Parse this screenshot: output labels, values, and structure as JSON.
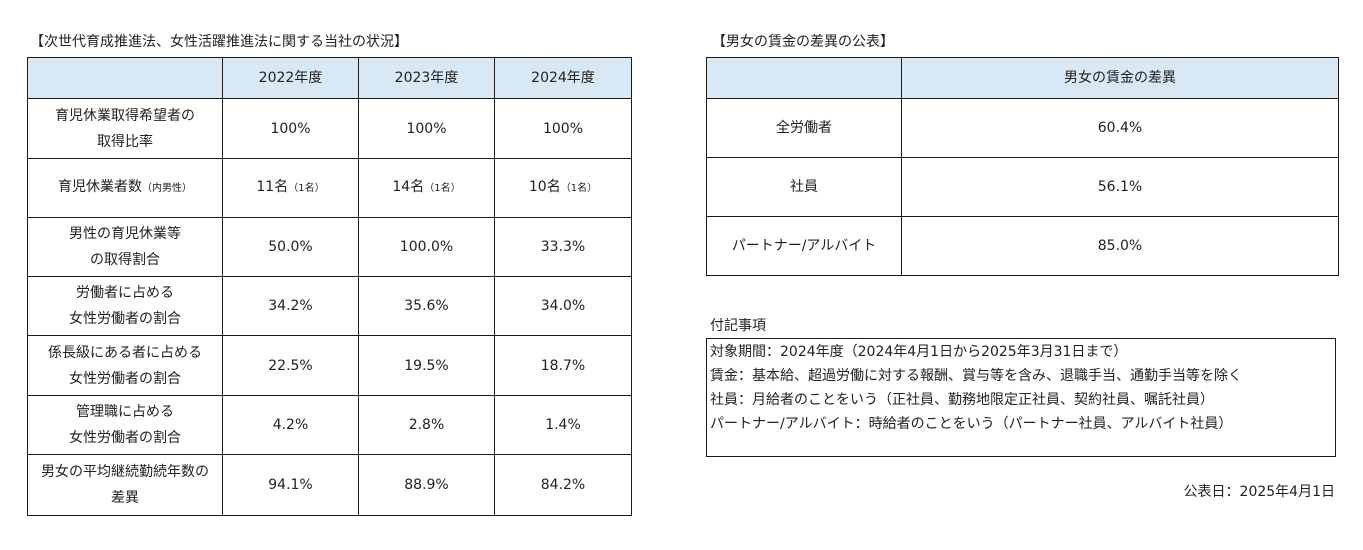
{
  "left": {
    "title": "【次世代育成推進法、女性活躍推進法に関する当社の状況】",
    "header": [
      "",
      "2022年度",
      "2023年度",
      "2024年度"
    ],
    "rows": [
      {
        "label1": "育児休業取得希望者の",
        "label2": "取得比率",
        "values": [
          "100%",
          "100%",
          "100%"
        ]
      },
      {
        "label": "育児休業者数",
        "label_note": "（内男性）",
        "values": [
          {
            "main": "11名",
            "note": "（1名）"
          },
          {
            "main": "14名",
            "note": "（1名）"
          },
          {
            "main": "10名",
            "note": "（1名）"
          }
        ]
      },
      {
        "label1": "男性の育児休業等",
        "label2": "の取得割合",
        "values": [
          "50.0%",
          "100.0%",
          "33.3%"
        ]
      },
      {
        "label1": "労働者に占める",
        "label2": "女性労働者の割合",
        "values": [
          "34.2%",
          "35.6%",
          "34.0%"
        ]
      },
      {
        "label1": "係長級にある者に占める",
        "label2": "女性労働者の割合",
        "values": [
          "22.5%",
          "19.5%",
          "18.7%"
        ]
      },
      {
        "label1": "管理職に占める",
        "label2": "女性労働者の割合",
        "values": [
          "4.2%",
          "2.8%",
          "1.4%"
        ]
      },
      {
        "label1": "男女の平均継続勤続年数の",
        "label2": "差異",
        "values": [
          "94.1%",
          "88.9%",
          "84.2%"
        ]
      }
    ]
  },
  "right": {
    "title": "【男女の賃金の差異の公表】",
    "header": [
      "",
      "男女の賃金の差異"
    ],
    "rows": [
      {
        "label": "全労働者",
        "value": "60.4%"
      },
      {
        "label": "社員",
        "value": "56.1%"
      },
      {
        "label": "パートナー/アルバイト",
        "value": "85.0%"
      }
    ]
  },
  "notes": {
    "title": "付記事項",
    "lines": [
      "対象期間：2024年度（2024年4月1日から2025年3月31日まで）",
      "賃金：基本給、超過労働に対する報酬、賞与等を含み、退職手当、通勤手当等を除く",
      "社員：月給者のことをいう（正社員、勤務地限定正社員、契約社員、嘱託社員）",
      "パートナー/アルバイト：時給者のことをいう（パートナー社員、アルバイト社員）"
    ]
  },
  "published": "公表日：2025年4月1日",
  "colors": {
    "header_bg": "#d9e8f5",
    "border": "#1a1a1a"
  }
}
